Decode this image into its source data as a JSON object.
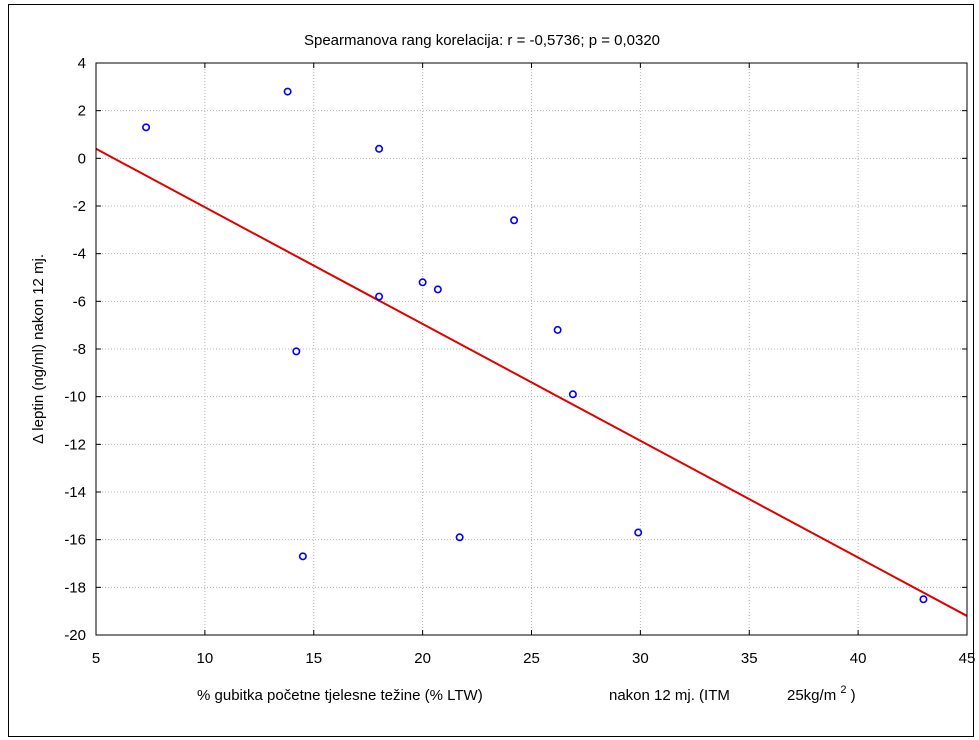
{
  "chart_data": {
    "type": "scatter",
    "title": "Spearmanova rang korelacija: r = -0,5736; p = 0,0320",
    "xlabel_main": "% gubitka početne tjelesne težine (% LTW)",
    "xlabel_suffix": "nakon 12 mj. (ITM",
    "xlabel_unit": "25kg/m",
    "xlabel_sup": "2",
    "xlabel_close": ")",
    "ylabel": "Δ leptin (ng/ml) nakon 12 mj.",
    "xlim": [
      5,
      45
    ],
    "ylim": [
      -20,
      4
    ],
    "x_ticks": [
      5,
      10,
      15,
      20,
      25,
      30,
      35,
      40,
      45
    ],
    "y_ticks": [
      4,
      2,
      0,
      -2,
      -4,
      -6,
      -8,
      -10,
      -12,
      -14,
      -16,
      -18,
      -20
    ],
    "grid": true,
    "points": [
      {
        "x": 7.3,
        "y": 1.3
      },
      {
        "x": 13.8,
        "y": 2.8
      },
      {
        "x": 18.0,
        "y": 0.4
      },
      {
        "x": 24.2,
        "y": -2.6
      },
      {
        "x": 20.0,
        "y": -5.2
      },
      {
        "x": 20.7,
        "y": -5.5
      },
      {
        "x": 18.0,
        "y": -5.8
      },
      {
        "x": 26.2,
        "y": -7.2
      },
      {
        "x": 14.2,
        "y": -8.1
      },
      {
        "x": 26.9,
        "y": -9.9
      },
      {
        "x": 29.9,
        "y": -15.7
      },
      {
        "x": 21.7,
        "y": -15.9
      },
      {
        "x": 14.5,
        "y": -16.7
      },
      {
        "x": 43.0,
        "y": -18.5
      }
    ],
    "fit_line": {
      "x": [
        5,
        45
      ],
      "y": [
        0.4,
        -19.2
      ]
    },
    "colors": {
      "points": "#0000ff",
      "fit_line": "#e00000",
      "grid": "#b4b4b4"
    }
  }
}
